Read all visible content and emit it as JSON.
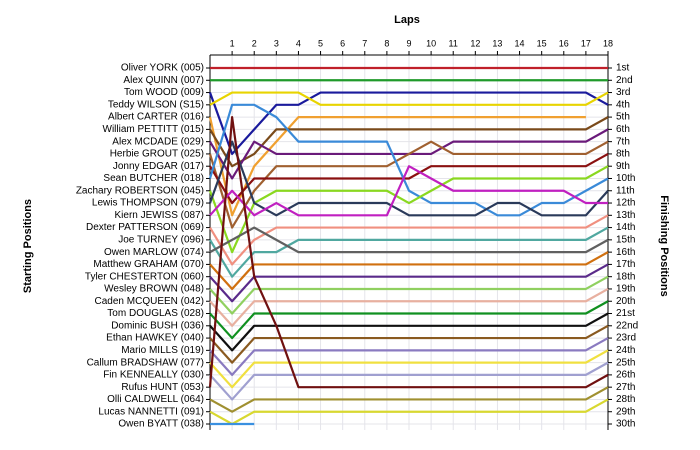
{
  "chart_data": {
    "type": "bump",
    "title": "Laps",
    "y_label": "Starting Positions",
    "y2_label": "Finishing Positions",
    "x": [
      0,
      1,
      2,
      3,
      4,
      5,
      6,
      7,
      8,
      9,
      10,
      11,
      12,
      13,
      14,
      15,
      16,
      17,
      18
    ],
    "xlim": [
      0,
      18
    ],
    "xticks": [
      1,
      2,
      3,
      4,
      5,
      6,
      7,
      8,
      9,
      10,
      11,
      12,
      13,
      14,
      15,
      16,
      17,
      18
    ],
    "ylim": [
      1,
      30
    ],
    "grid": true,
    "finishing_positions": [
      "1st",
      "2nd",
      "3rd",
      "4th",
      "5th",
      "6th",
      "7th",
      "8th",
      "9th",
      "10th",
      "11th",
      "12th",
      "13th",
      "14th",
      "15th",
      "16th",
      "17th",
      "18th",
      "19th",
      "20th",
      "21st",
      "22nd",
      "23rd",
      "24th",
      "25th",
      "26th",
      "27th",
      "28th",
      "29th",
      "30th"
    ],
    "series": [
      {
        "name": "Oliver YORK (005)",
        "color": "#c0202a",
        "values": [
          1,
          1,
          1,
          1,
          1,
          1,
          1,
          1,
          1,
          1,
          1,
          1,
          1,
          1,
          1,
          1,
          1,
          1,
          1
        ]
      },
      {
        "name": "Alex QUINN (007)",
        "color": "#1f9a2a",
        "values": [
          2,
          2,
          2,
          2,
          2,
          2,
          2,
          2,
          2,
          2,
          2,
          2,
          2,
          2,
          2,
          2,
          2,
          2,
          2
        ]
      },
      {
        "name": "Tom WOOD (009)",
        "color": "#1a1a9c",
        "values": [
          3,
          8,
          6,
          4,
          4,
          3,
          3,
          3,
          3,
          3,
          3,
          3,
          3,
          3,
          3,
          3,
          3,
          3,
          4
        ]
      },
      {
        "name": "Teddy WILSON (S15)",
        "color": "#e8d400",
        "values": [
          4,
          3,
          3,
          3,
          3,
          4,
          4,
          4,
          4,
          4,
          4,
          4,
          4,
          4,
          4,
          4,
          4,
          4,
          3
        ]
      },
      {
        "name": "Albert CARTER (016)",
        "color": "#f0a030",
        "values": [
          5,
          13,
          9,
          7,
          5,
          5,
          5,
          5,
          5,
          5,
          5,
          5,
          5,
          5,
          5,
          5,
          5,
          5,
          null
        ]
      },
      {
        "name": "William PETTITT (015)",
        "color": "#7a4a1a",
        "values": [
          6,
          9,
          8,
          6,
          6,
          6,
          6,
          6,
          6,
          6,
          6,
          6,
          6,
          6,
          6,
          6,
          6,
          6,
          5
        ]
      },
      {
        "name": "Alex MCDADE (029)",
        "color": "#6a1a7a",
        "values": [
          7,
          10,
          7,
          8,
          8,
          8,
          8,
          8,
          8,
          8,
          8,
          7,
          7,
          7,
          7,
          7,
          7,
          7,
          6
        ]
      },
      {
        "name": "Herbie GROUT (025)",
        "color": "#a06030",
        "values": [
          8,
          14,
          11,
          9,
          9,
          9,
          9,
          9,
          9,
          8,
          7,
          8,
          8,
          8,
          8,
          8,
          8,
          8,
          7
        ]
      },
      {
        "name": "Jonny EDGAR (017)",
        "color": "#8a1010",
        "values": [
          9,
          12,
          10,
          10,
          10,
          10,
          10,
          10,
          10,
          10,
          9,
          9,
          9,
          9,
          9,
          9,
          9,
          9,
          8
        ]
      },
      {
        "name": "Sean BUTCHER (018)",
        "color": "#3a8ad8",
        "values": [
          10,
          4,
          4,
          5,
          7,
          7,
          7,
          7,
          7,
          11,
          12,
          12,
          12,
          13,
          13,
          12,
          12,
          11,
          10
        ]
      },
      {
        "name": "Zachary ROBERTSON (045)",
        "color": "#8ad820",
        "values": [
          11,
          16,
          12,
          11,
          11,
          11,
          11,
          11,
          11,
          12,
          11,
          10,
          10,
          10,
          10,
          10,
          10,
          10,
          9
        ]
      },
      {
        "name": "Lewis THOMPSON (079)",
        "color": "#2a3a5a",
        "values": [
          12,
          7,
          12,
          13,
          12,
          12,
          12,
          12,
          12,
          13,
          13,
          13,
          13,
          12,
          12,
          13,
          13,
          13,
          11
        ]
      },
      {
        "name": "Kiern JEWISS (087)",
        "color": "#c020c0",
        "values": [
          13,
          11,
          13,
          12,
          13,
          13,
          13,
          13,
          13,
          9,
          10,
          11,
          11,
          11,
          11,
          11,
          11,
          12,
          12
        ]
      },
      {
        "name": "Dexter PATTERSON (069)",
        "color": "#f09080",
        "values": [
          14,
          17,
          15,
          14,
          14,
          14,
          14,
          14,
          14,
          14,
          14,
          14,
          14,
          14,
          14,
          14,
          14,
          14,
          13
        ]
      },
      {
        "name": "Joe TURNEY (096)",
        "color": "#50a8a0",
        "values": [
          15,
          18,
          16,
          16,
          15,
          15,
          15,
          15,
          15,
          15,
          15,
          15,
          15,
          15,
          15,
          15,
          15,
          15,
          14
        ]
      },
      {
        "name": "Owen MARLOW (074)",
        "color": "#606060",
        "values": [
          16,
          15,
          14,
          15,
          16,
          16,
          16,
          16,
          16,
          16,
          16,
          16,
          16,
          16,
          16,
          16,
          16,
          16,
          15
        ]
      },
      {
        "name": "Matthew GRAHAM (070)",
        "color": "#d07010",
        "values": [
          17,
          19,
          17,
          17,
          17,
          17,
          17,
          17,
          17,
          17,
          17,
          17,
          17,
          17,
          17,
          17,
          17,
          17,
          16
        ]
      },
      {
        "name": "Tyler CHESTERTON (060)",
        "color": "#5a2a8a",
        "values": [
          18,
          20,
          18,
          18,
          18,
          18,
          18,
          18,
          18,
          18,
          18,
          18,
          18,
          18,
          18,
          18,
          18,
          18,
          17
        ]
      },
      {
        "name": "Wesley BROWN (048)",
        "color": "#90d060",
        "values": [
          19,
          21,
          19,
          19,
          19,
          19,
          19,
          19,
          19,
          19,
          19,
          19,
          19,
          19,
          19,
          19,
          19,
          19,
          18
        ]
      },
      {
        "name": "Caden MCQUEEN (042)",
        "color": "#e8b0a0",
        "values": [
          20,
          22,
          20,
          20,
          20,
          20,
          20,
          20,
          20,
          20,
          20,
          20,
          20,
          20,
          20,
          20,
          20,
          20,
          19
        ]
      },
      {
        "name": "Tom DOUGLAS (028)",
        "color": "#109020",
        "values": [
          21,
          23,
          21,
          21,
          21,
          21,
          21,
          21,
          21,
          21,
          21,
          21,
          21,
          21,
          21,
          21,
          21,
          21,
          20
        ]
      },
      {
        "name": "Dominic BUSH (036)",
        "color": "#101010",
        "values": [
          22,
          24,
          22,
          22,
          22,
          22,
          22,
          22,
          22,
          22,
          22,
          22,
          22,
          22,
          22,
          22,
          22,
          22,
          21
        ]
      },
      {
        "name": "Ethan HAWKEY (040)",
        "color": "#8a5a20",
        "values": [
          23,
          25,
          23,
          23,
          23,
          23,
          23,
          23,
          23,
          23,
          23,
          23,
          23,
          23,
          23,
          23,
          23,
          23,
          22
        ]
      },
      {
        "name": "Mario MILLS (019)",
        "color": "#8a7ac0",
        "values": [
          24,
          26,
          24,
          24,
          24,
          24,
          24,
          24,
          24,
          24,
          24,
          24,
          24,
          24,
          24,
          24,
          24,
          24,
          23
        ]
      },
      {
        "name": "Callum BRADSHAW (077)",
        "color": "#f0e040",
        "values": [
          25,
          27,
          25,
          25,
          25,
          25,
          25,
          25,
          25,
          25,
          25,
          25,
          25,
          25,
          25,
          25,
          25,
          25,
          24
        ]
      },
      {
        "name": "Fin KENNEALLY (030)",
        "color": "#a0a0d0",
        "values": [
          26,
          28,
          26,
          26,
          26,
          26,
          26,
          26,
          26,
          26,
          26,
          26,
          26,
          26,
          26,
          26,
          26,
          26,
          25
        ]
      },
      {
        "name": "Rufus HUNT (053)",
        "color": "#701010",
        "values": [
          27,
          5,
          18,
          22,
          27,
          27,
          27,
          27,
          27,
          27,
          27,
          27,
          27,
          27,
          27,
          27,
          27,
          27,
          26
        ]
      },
      {
        "name": "Olli CALDWELL (064)",
        "color": "#a09030",
        "values": [
          28,
          29,
          28,
          28,
          28,
          28,
          28,
          28,
          28,
          28,
          28,
          28,
          28,
          28,
          28,
          28,
          28,
          28,
          27
        ]
      },
      {
        "name": "Lucas NANNETTI (091)",
        "color": "#d8d830",
        "values": [
          29,
          30,
          29,
          29,
          29,
          29,
          29,
          29,
          29,
          29,
          29,
          29,
          29,
          29,
          29,
          29,
          29,
          29,
          28
        ]
      },
      {
        "name": "Owen BYATT (038)",
        "color": "#3a90e0",
        "values": [
          30,
          30,
          30,
          null,
          null,
          null,
          null,
          null,
          null,
          null,
          null,
          null,
          null,
          null,
          null,
          null,
          null,
          null,
          null
        ]
      }
    ]
  }
}
